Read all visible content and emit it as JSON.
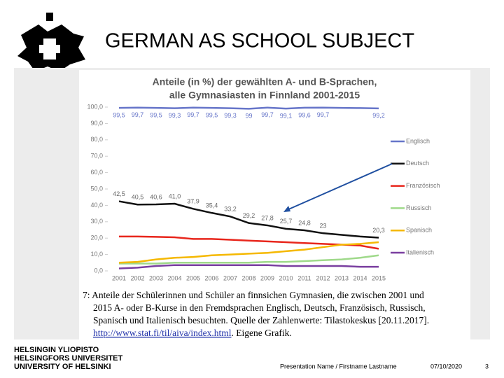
{
  "slide": {
    "title": "GERMAN AS SCHOOL SUBJECT",
    "caption": [
      "7: Anteile der Schülerinnen und Schüler an finnsichen Gymnasien, die zwischen 2001 und",
      "2015 A- oder B-Kurse in den Fremdsprachen Englisch, Deutsch, Französisch, Russisch,",
      "Spanisch und Italienisch besuchten. Quelle der Zahlenwerte: Tilastokeskus [20.11.2017]."
    ],
    "caption_link": "http://www.stat.fi/til/aiva/index.html",
    "caption_end": ". Eigene Grafik.",
    "university": [
      "HELSINGIN YLIOPISTO",
      "HELSINGFORS UNIVERSITET",
      "UNIVERSITY OF HELSINKI"
    ],
    "presenter": "Presentation Name / Firstname Lastname",
    "date": "07/10/2020",
    "page": "3"
  },
  "chart_data": {
    "type": "line",
    "title": "Anteile (in %) der gewählten A- und B-Sprachen,",
    "subtitle": "alle Gymnasiasten in Finnland 2001-2015",
    "categories": [
      "2001",
      "2002",
      "2003",
      "2004",
      "2005",
      "2006",
      "2007",
      "2008",
      "2009",
      "2010",
      "2011",
      "2012",
      "2013",
      "2014",
      "2015"
    ],
    "ylim": [
      0,
      100
    ],
    "yticks": [
      {
        "value": 0,
        "label": "0,0"
      },
      {
        "value": 10,
        "label": "10,0"
      },
      {
        "value": 20,
        "label": "20,0"
      },
      {
        "value": 30,
        "label": "30,0"
      },
      {
        "value": 40,
        "label": "40,0"
      },
      {
        "value": 50,
        "label": "50,0"
      },
      {
        "value": 60,
        "label": "60,0"
      },
      {
        "value": 70,
        "label": "70,0"
      },
      {
        "value": 80,
        "label": "80,0"
      },
      {
        "value": 90,
        "label": "90,0"
      },
      {
        "value": 100,
        "label": "100,0"
      }
    ],
    "grid": false,
    "legend": "right",
    "series": [
      {
        "name": "Englisch",
        "color": "#6675c9",
        "values": [
          99.5,
          99.7,
          99.5,
          99.3,
          99.7,
          99.5,
          99.3,
          99,
          99.7,
          99.1,
          99.6,
          99.7,
          99.5,
          99.4,
          99.2
        ],
        "value_labels": [
          "99,5",
          "99,7",
          "99,5",
          "99,3",
          "99,7",
          "99,5",
          "99,3",
          "99",
          "99,7",
          "99,1",
          "99,6",
          "99,7",
          null,
          null,
          "99,2"
        ]
      },
      {
        "name": "Deutsch",
        "color": "#111111",
        "values": [
          42.5,
          40.5,
          40.6,
          41.0,
          37.9,
          35.4,
          33.2,
          29.2,
          27.8,
          25.7,
          24.8,
          23,
          22,
          21,
          20.3
        ],
        "value_labels": [
          "42,5",
          "40,5",
          "40,6",
          "41,0",
          "37,9",
          "35,4",
          "33,2",
          "29,2",
          "27,8",
          "25,7",
          "24,8",
          "23",
          null,
          null,
          "20,3"
        ]
      },
      {
        "name": "Französisch",
        "color": "#e8261c",
        "values": [
          21,
          21,
          20.8,
          20.5,
          19.5,
          19.5,
          19,
          18.5,
          18,
          17.5,
          17,
          16.5,
          16,
          15.5,
          13.5
        ]
      },
      {
        "name": "Russisch",
        "color": "#9fd98a",
        "values": [
          4.5,
          4.5,
          4.5,
          5,
          5,
          5,
          5,
          5,
          5.5,
          5.5,
          6,
          6.5,
          7,
          8,
          9.5
        ]
      },
      {
        "name": "Spanisch",
        "color": "#f5b800",
        "values": [
          5,
          5.5,
          7,
          8,
          8.5,
          9.5,
          10,
          10.5,
          11,
          12,
          13,
          14.5,
          16,
          16.5,
          17.5
        ]
      },
      {
        "name": "Italienisch",
        "color": "#7a3fa0",
        "values": [
          1.5,
          2,
          3,
          3.5,
          3.5,
          3.5,
          3.5,
          3.5,
          3.5,
          3,
          3,
          3,
          3,
          2.5,
          2.5
        ]
      }
    ]
  }
}
